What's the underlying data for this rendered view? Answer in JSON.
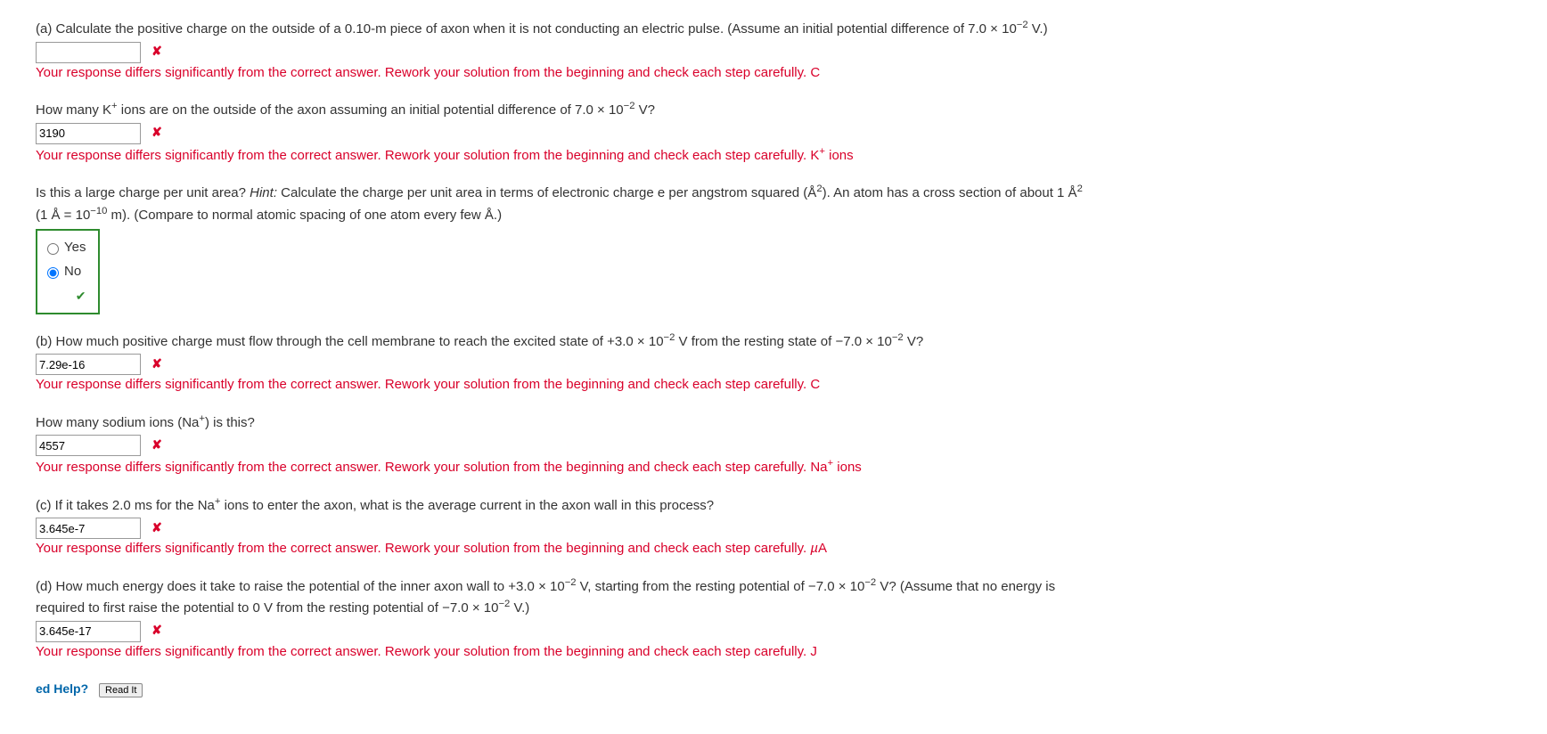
{
  "feedback_text": "Your response differs significantly from the correct answer. Rework your solution from the beginning and check each step carefully.",
  "partA": {
    "prompt_pre": "(a) Calculate the positive charge on the outside of a 0.10-m piece of axon when it is not conducting an electric pulse. (Assume an initial potential difference of 7.0 × 10",
    "prompt_exp": "−2",
    "prompt_post": " V.)",
    "answer1": "",
    "unit1": "C",
    "q2_pre": "How many K",
    "q2_sup": "+",
    "q2_mid": " ions are on the outside of the axon assuming an initial potential difference of 7.0 × 10",
    "q2_exp": "−2",
    "q2_post": " V?",
    "answer2": "3190",
    "unit2_pre": "K",
    "unit2_sup": "+",
    "unit2_post": " ions",
    "q3_pre": "Is this a large charge per unit area? ",
    "hint_label": "Hint:",
    "q3_mid": " Calculate the charge per unit area in terms of electronic charge e per angstrom squared (Å",
    "q3_sup1": "2",
    "q3_mid2": "). An atom has a cross section of about 1 Å",
    "q3_sup2": "2",
    "q3_line2_pre": "(1 Å = 10",
    "q3_line2_exp": "−10",
    "q3_line2_post": " m). (Compare to normal atomic spacing of one atom every few Å.)",
    "opt_yes": "Yes",
    "opt_no": "No"
  },
  "partB": {
    "prompt_pre": "(b) How much positive charge must flow through the cell membrane to reach the excited state of +3.0 × 10",
    "prompt_exp1": "−2",
    "prompt_mid": " V from the resting state of −7.0 × 10",
    "prompt_exp2": "−2",
    "prompt_post": " V?",
    "answer1": "7.29e-16",
    "unit1": "C",
    "q2_pre": "How many sodium ions (Na",
    "q2_sup": "+",
    "q2_post": ") is this?",
    "answer2": "4557",
    "unit2_pre": "Na",
    "unit2_sup": "+",
    "unit2_post": " ions"
  },
  "partC": {
    "prompt_pre": "(c) If it takes 2.0 ms for the Na",
    "prompt_sup": "+",
    "prompt_post": " ions to enter the axon, what is the average current in the axon wall in this process?",
    "answer": "3.645e-7",
    "unit_mu": "µ",
    "unit_post": "A"
  },
  "partD": {
    "prompt_pre": "(d) How much energy does it take to raise the potential of the inner axon wall to +3.0 × 10",
    "prompt_exp1": "−2",
    "prompt_mid": " V, starting from the resting potential of −7.0 × 10",
    "prompt_exp2": "−2",
    "prompt_post": " V? (Assume that no energy is ",
    "line2_pre": "required to first raise the potential to 0 V from the resting potential of −7.0 × 10",
    "line2_exp": "−2",
    "line2_post": " V.)",
    "answer": "3.645e-17",
    "unit": "J"
  },
  "help": {
    "label": "ed Help?",
    "button": "Read It"
  }
}
